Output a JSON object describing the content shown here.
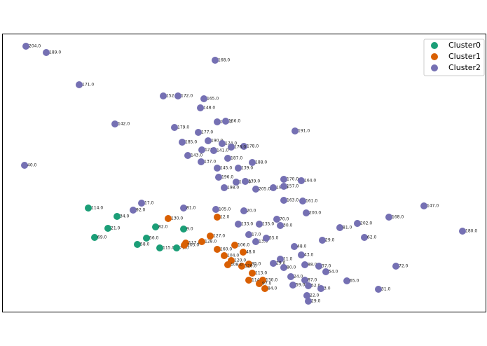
{
  "chart_data": {
    "type": "scatter",
    "xlim": [
      3,
      695
    ],
    "ylim": [
      0,
      397
    ],
    "legend": "upper right",
    "series": [
      {
        "name": "Cluster0",
        "color": "#1b9e77",
        "x": [
          126,
          167,
          154,
          135,
          222,
          262,
          209,
          196,
          228,
          252
        ],
        "y": [
          148,
          136,
          119,
          106,
          121,
          118,
          105,
          96,
          91,
          91
        ],
        "labels": [
          "114.0",
          "34.0",
          "21.0",
          "69.0",
          "82.0",
          "9.0",
          "56.0",
          "58.0",
          "115.0",
          "71.0"
        ]
      },
      {
        "name": "Cluster1",
        "color": "#d95f02",
        "x": [
          240,
          310,
          265,
          263,
          288,
          300,
          310,
          320,
          330,
          347,
          355,
          360,
          355,
          375,
          378,
          370,
          335,
          345,
          325
        ],
        "y": [
          133,
          135,
          98,
          95,
          100,
          108,
          89,
          80,
          73,
          85,
          68,
          55,
          45,
          45,
          33,
          40,
          95,
          65,
          67
        ],
        "labels": [
          "130.0",
          "12.0",
          "117.0",
          "103.0",
          "128.0",
          "127.0",
          "160.0",
          "104.0",
          "120.0",
          "48.0",
          "95.0",
          "113.0",
          "114.0",
          "130.0",
          "84.0",
          "97.0",
          "106.0",
          "126.0",
          "108.0"
        ]
      },
      {
        "name": "Cluster2",
        "color": "#7570b3",
        "x": [
          37,
          66,
          113,
          307,
          233,
          254,
          291,
          286,
          164,
          249,
          310,
          322,
          421,
          283,
          260,
          297,
          317,
          348,
          330,
          288,
          305,
          268,
          325,
          287,
          360,
          310,
          340,
          35,
          312,
          405,
          430,
          337,
          350,
          320,
          365,
          390,
          405,
          405,
          432,
          605,
          202,
          190,
          262,
          308,
          348,
          437,
          555,
          510,
          485,
          395,
          400,
          660,
          520,
          460,
          365,
          420,
          430,
          400,
          390,
          405,
          435,
          455,
          465,
          495,
          415,
          435,
          440,
          458,
          418,
          438,
          440,
          540,
          565,
          370,
          340,
          355,
          380
        ],
        "y": [
          379,
          370,
          324,
          359,
          308,
          308,
          304,
          291,
          268,
          263,
          271,
          272,
          258,
          256,
          242,
          244,
          240,
          236,
          235,
          231,
          230,
          223,
          219,
          214,
          213,
          205,
          205,
          209,
          192,
          189,
          187,
          185,
          186,
          177,
          175,
          177,
          179,
          159,
          158,
          151,
          155,
          145,
          148,
          146,
          144,
          141,
          135,
          126,
          120,
          132,
          123,
          115,
          106,
          102,
          100,
          93,
          81,
          75,
          69,
          63,
          67,
          65,
          57,
          44,
          50,
          45,
          37,
          33,
          38,
          23,
          15,
          32,
          65,
          125,
          125,
          110,
          105
        ],
        "labels": [
          "204.0",
          "189.0",
          "171.0",
          "168.0",
          "152.0",
          "172.0",
          "165.0",
          "148.0",
          "142.0",
          "179.0",
          "150.0",
          "156.0",
          "191.0",
          "177.0",
          "185.0",
          "190.0",
          "174.0",
          "178.0",
          "176.0",
          "121.0",
          "141.0",
          "143.0",
          "187.0",
          "137.0",
          "188.0",
          "145.0",
          "139.0",
          "40.0",
          "196.0",
          "170.0",
          "164.0",
          "186.0",
          "139.0",
          "198.0",
          "205.0",
          "192.0",
          "157.0",
          "163.0",
          "161.0",
          "147.0",
          "17.0",
          "92.0",
          "81.0",
          "105.0",
          "20.0",
          "200.0",
          "168.0",
          "202.0",
          "81.0",
          "70.0",
          "30.0",
          "180.0",
          "62.0",
          "29.0",
          "13.0",
          "48.0",
          "43.0",
          "11.0",
          "29.0",
          "80.0",
          "88.0",
          "37.0",
          "54.0",
          "65.0",
          "24.0",
          "87.0",
          "52.0",
          "3.0",
          "59.0",
          "22.0",
          "29.0",
          "31.0",
          "72.0",
          "135.0",
          "133.0",
          "17.0",
          "55.0"
        ]
      }
    ]
  }
}
